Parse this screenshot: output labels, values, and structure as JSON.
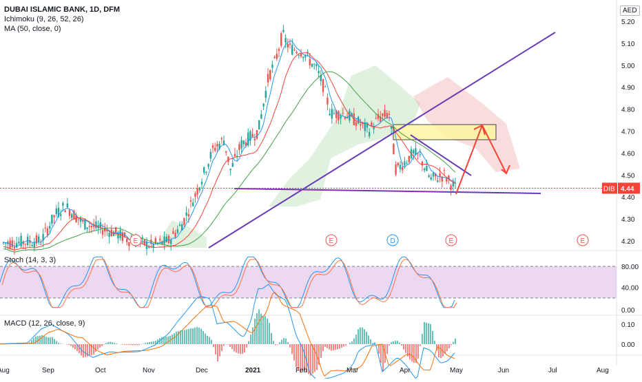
{
  "header": {
    "title": "DUBAI ISLAMIC BANK, 1D, DFM",
    "indicators": [
      "Ichimoku (9, 26, 52, 26)",
      "MA (50, close, 0)"
    ],
    "currency": "AED"
  },
  "price_tag": {
    "symbol": "DIB",
    "value": "4.44"
  },
  "price_scale": [
    "5.20",
    "5.10",
    "5.00",
    "4.90",
    "4.80",
    "4.70",
    "4.60",
    "4.50",
    "4.40",
    "4.30",
    "4.20"
  ],
  "stoch": {
    "label": "Stoch (14, 3, 3)",
    "scale": [
      "80.00",
      "40.00",
      "0.00"
    ]
  },
  "macd": {
    "label": "MACD (12, 26, close, 9)",
    "scale": [
      "0.10",
      "0.00"
    ]
  },
  "time_axis": [
    "Aug",
    "Sep",
    "Oct",
    "Nov",
    "Dec",
    "2021",
    "Feb",
    "Mar",
    "Apr",
    "May",
    "Jun",
    "Jul",
    "Aug"
  ],
  "event_markers": [
    "E",
    "E",
    "D",
    "E",
    "E"
  ],
  "colors": {
    "up": "#26a69a",
    "down": "#ef5350",
    "tenkan": "#2196f3",
    "kijun": "#f44336",
    "ma": "#43a047",
    "trend": "#673ab7",
    "stochK": "#2196f3",
    "stochD": "#ff7043",
    "stochBand": "#e1bee7",
    "macd": "#2196f3",
    "signal": "#ff6d00",
    "arrow": "#f44336"
  },
  "chart_data": [
    {
      "type": "candlestick",
      "title": "DUBAI ISLAMIC BANK, 1D, DFM",
      "x": [
        "2020-08",
        "2020-09",
        "2020-10",
        "2020-11",
        "2020-12",
        "2021-01",
        "2021-02",
        "2021-03",
        "2021-04",
        "2021-05"
      ],
      "close": [
        4.19,
        4.34,
        4.25,
        4.2,
        4.62,
        4.95,
        4.8,
        4.72,
        4.52,
        4.44
      ],
      "high": [
        4.21,
        4.38,
        4.31,
        4.24,
        4.7,
        5.15,
        5.0,
        4.85,
        4.68,
        4.56
      ],
      "low": [
        4.15,
        4.18,
        4.16,
        4.13,
        4.21,
        4.6,
        4.63,
        4.58,
        4.45,
        4.41
      ],
      "ylim": [
        4.15,
        5.23
      ],
      "last_price": 4.44
    },
    {
      "type": "line",
      "title": "Stoch (14, 3, 3)",
      "x": [
        "2020-08",
        "2020-09",
        "2020-10",
        "2020-11",
        "2020-12",
        "2021-01",
        "2021-02",
        "2021-03",
        "2021-04",
        "2021-05"
      ],
      "series": [
        {
          "name": "%K",
          "values": [
            40,
            85,
            30,
            20,
            85,
            90,
            10,
            60,
            30,
            5
          ]
        },
        {
          "name": "%D",
          "values": [
            42,
            80,
            35,
            25,
            80,
            85,
            15,
            55,
            32,
            12
          ]
        }
      ],
      "levels": [
        80,
        20
      ],
      "ylim": [
        0,
        100
      ]
    },
    {
      "type": "line",
      "title": "MACD (12, 26, close, 9)",
      "x": [
        "2020-08",
        "2020-09",
        "2020-10",
        "2020-11",
        "2020-12",
        "2021-01",
        "2021-02",
        "2021-03",
        "2021-04",
        "2021-05"
      ],
      "series": [
        {
          "name": "MACD",
          "values": [
            0.01,
            0.05,
            0.0,
            -0.02,
            0.06,
            0.12,
            0.05,
            -0.04,
            -0.06,
            -0.05
          ]
        },
        {
          "name": "Signal",
          "values": [
            0.0,
            0.04,
            0.02,
            -0.01,
            0.03,
            0.1,
            0.07,
            -0.02,
            -0.05,
            -0.05
          ]
        }
      ],
      "ylim": [
        -0.08,
        0.14
      ]
    }
  ]
}
